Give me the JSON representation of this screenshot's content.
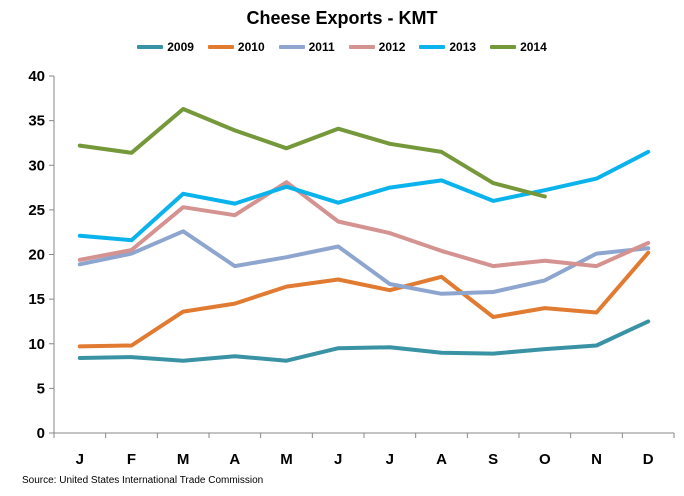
{
  "chart_data": {
    "type": "line",
    "title": "Cheese Exports - KMT",
    "source": "Source: United States International Trade Commission",
    "categories": [
      "J",
      "F",
      "M",
      "A",
      "M",
      "J",
      "J",
      "A",
      "S",
      "O",
      "N",
      "D"
    ],
    "ylim": [
      0,
      40
    ],
    "yticks": [
      0,
      5,
      10,
      15,
      20,
      25,
      30,
      35,
      40
    ],
    "legend_position": "top",
    "grid": false,
    "series": [
      {
        "name": "2009",
        "color": "#3a93a4",
        "values": [
          8.4,
          8.5,
          8.1,
          8.6,
          8.1,
          9.5,
          9.6,
          9.0,
          8.9,
          9.4,
          9.8,
          12.5
        ]
      },
      {
        "name": "2010",
        "color": "#e07b31",
        "values": [
          9.7,
          9.8,
          13.6,
          14.5,
          16.4,
          17.2,
          16.0,
          17.5,
          13.0,
          14.0,
          13.5,
          20.2
        ]
      },
      {
        "name": "2011",
        "color": "#8ea6cf",
        "values": [
          18.9,
          20.1,
          22.6,
          18.7,
          19.7,
          20.9,
          16.7,
          15.6,
          15.8,
          17.1,
          20.1,
          20.7
        ]
      },
      {
        "name": "2012",
        "color": "#d49390",
        "values": [
          19.4,
          20.5,
          25.3,
          24.4,
          28.1,
          23.7,
          22.4,
          20.4,
          18.7,
          19.3,
          18.7,
          21.3
        ]
      },
      {
        "name": "2013",
        "color": "#0ab3ec",
        "values": [
          22.1,
          21.6,
          26.8,
          25.7,
          27.6,
          25.8,
          27.5,
          28.3,
          26.0,
          27.2,
          28.5,
          31.5
        ]
      },
      {
        "name": "2014",
        "color": "#74983a",
        "values": [
          32.2,
          31.4,
          36.3,
          33.9,
          31.9,
          34.1,
          32.4,
          31.5,
          28.0,
          26.5,
          null,
          null
        ]
      }
    ]
  }
}
